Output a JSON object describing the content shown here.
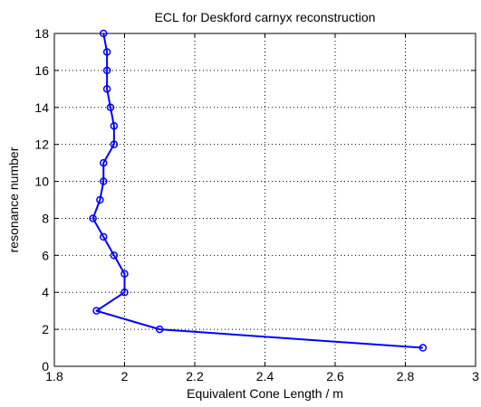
{
  "chart_data": {
    "type": "line",
    "title": "ECL for Deskford carnyx reconstruction",
    "xlabel": "Equivalent Cone Length / m",
    "ylabel": "resonance number",
    "xlim": [
      1.8,
      3.0
    ],
    "ylim": [
      0,
      18
    ],
    "x_ticks": [
      "1.8",
      "2",
      "2.2",
      "2.4",
      "2.6",
      "2.8",
      "3"
    ],
    "y_ticks": [
      "0",
      "2",
      "4",
      "6",
      "8",
      "10",
      "12",
      "14",
      "16",
      "18"
    ],
    "grid": true,
    "grid_style": "dotted",
    "marker": "circle",
    "series_color": "#0000ff",
    "series": [
      {
        "x": [
          2.85,
          2.1,
          1.92,
          2.0,
          2.0,
          1.97,
          1.94,
          1.91,
          1.93,
          1.94,
          1.94,
          1.97,
          1.97,
          1.96,
          1.95,
          1.95,
          1.95,
          1.94
        ],
        "y": [
          1,
          2,
          3,
          4,
          5,
          6,
          7,
          8,
          9,
          10,
          11,
          12,
          13,
          14,
          15,
          16,
          17,
          18
        ]
      }
    ]
  }
}
